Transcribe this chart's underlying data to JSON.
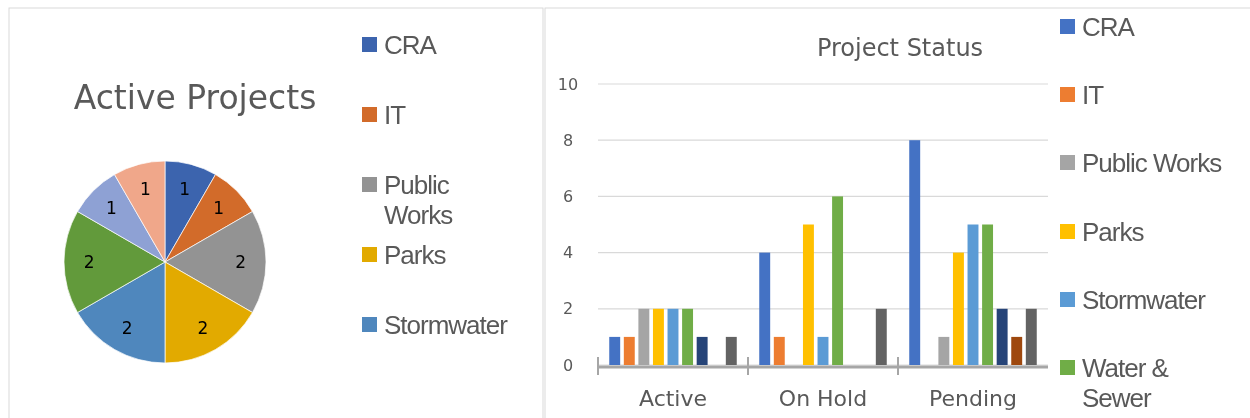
{
  "chart_data": [
    {
      "type": "pie",
      "title": "Active Projects",
      "categories": [
        "CRA",
        "IT",
        "Public Works",
        "Parks",
        "Stormwater",
        null,
        null,
        null
      ],
      "values": [
        1,
        1,
        2,
        2,
        2,
        2,
        1,
        1
      ],
      "colors": [
        "#3c64ae",
        "#d26b2a",
        "#939393",
        "#e2aa00",
        "#4f87bd",
        "#629a3b",
        "#8ea1d4",
        "#f0a78a"
      ],
      "data_labels": true,
      "legend": "right"
    },
    {
      "type": "bar",
      "title": "Project Status",
      "categories": [
        "Active",
        "On Hold",
        "Pending"
      ],
      "ylim": [
        0,
        10
      ],
      "yticks": [
        0,
        2,
        4,
        6,
        8,
        10
      ],
      "grid": "y",
      "legend": "right",
      "series": [
        {
          "name": "CRA",
          "color": "#4472c4",
          "values": [
            1,
            4,
            8
          ]
        },
        {
          "name": "IT",
          "color": "#ed7d31",
          "values": [
            1,
            1,
            null
          ]
        },
        {
          "name": "Public Works",
          "color": "#a5a5a5",
          "values": [
            2,
            null,
            1
          ]
        },
        {
          "name": "Parks",
          "color": "#ffc000",
          "values": [
            2,
            5,
            4
          ]
        },
        {
          "name": "Stormwater",
          "color": "#5b9bd5",
          "values": [
            2,
            1,
            5
          ]
        },
        {
          "name": "Water & Sewer",
          "color": "#70ad47",
          "values": [
            2,
            6,
            5
          ]
        },
        {
          "color": "#264478",
          "values": [
            1,
            null,
            2
          ]
        },
        {
          "color": "#9e480e",
          "values": [
            null,
            null,
            1
          ]
        },
        {
          "color": "#636363",
          "values": [
            1,
            2,
            2
          ]
        }
      ]
    }
  ]
}
